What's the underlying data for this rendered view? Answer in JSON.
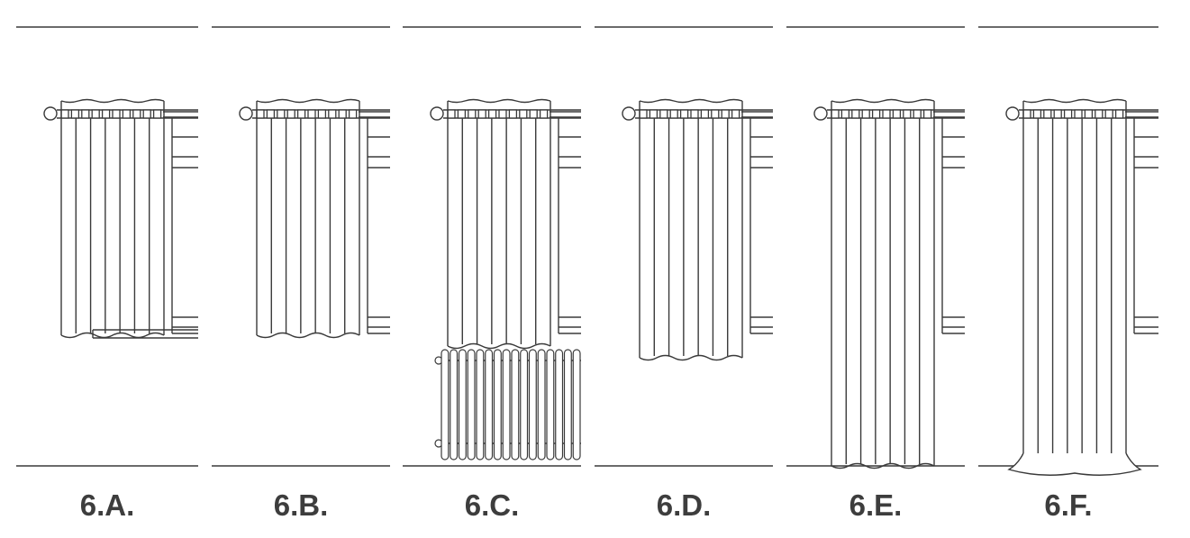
{
  "panels": [
    {
      "label": "6.A.",
      "length": "sill",
      "radiator": false
    },
    {
      "label": "6.B.",
      "length": "sill",
      "radiator": false
    },
    {
      "label": "6.C.",
      "length": "above-radiator",
      "radiator": true
    },
    {
      "label": "6.D.",
      "length": "below-sill",
      "radiator": false
    },
    {
      "label": "6.E.",
      "length": "floor",
      "radiator": false
    },
    {
      "label": "6.F.",
      "length": "puddle",
      "radiator": false
    }
  ],
  "colors": {
    "line": "#3a3a3a",
    "label": "#3d3d3d",
    "background": "#ffffff"
  }
}
